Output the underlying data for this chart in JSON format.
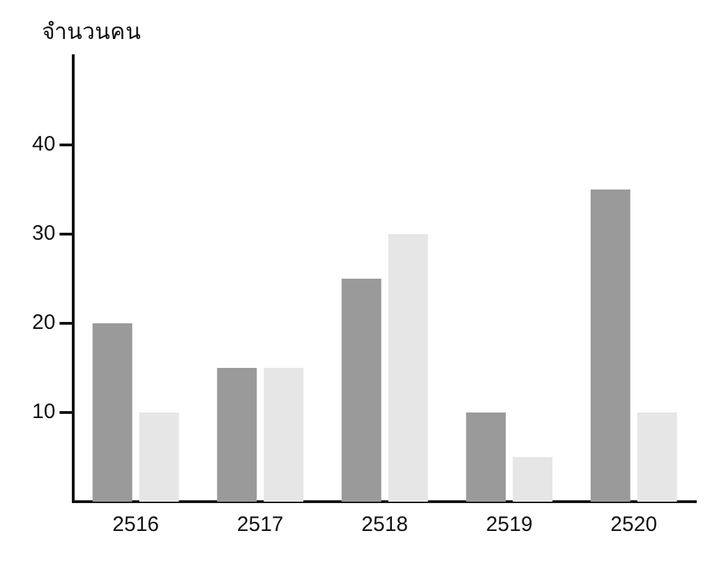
{
  "chart_data": {
    "type": "bar",
    "ylabel": "จำนวนคน",
    "categories": [
      "2516",
      "2517",
      "2518",
      "2519",
      "2520"
    ],
    "series": [
      {
        "color": "#9a9a9a",
        "values": [
          20,
          15,
          25,
          10,
          35
        ]
      },
      {
        "color": "#e6e6e6",
        "values": [
          10,
          15,
          30,
          5,
          10
        ]
      }
    ],
    "ylim": [
      0,
      50
    ],
    "yticks": [
      10,
      20,
      30,
      40
    ],
    "grid": false,
    "legend": false
  }
}
